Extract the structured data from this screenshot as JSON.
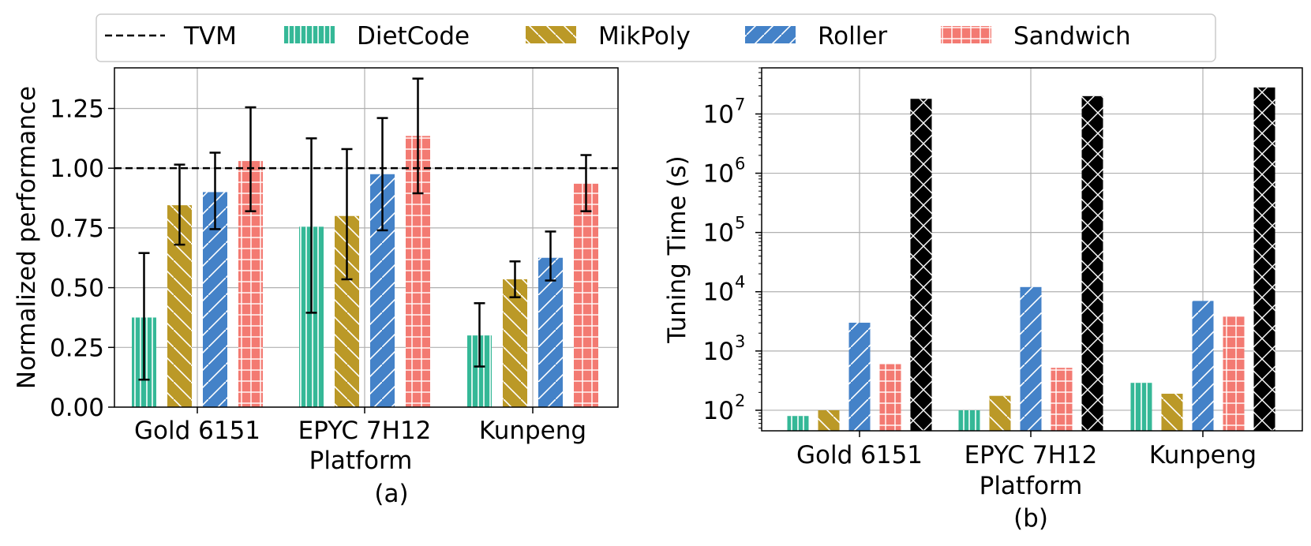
{
  "legend": {
    "items": [
      {
        "label": "TVM",
        "kind": "dash",
        "color": "#000000",
        "pattern": "none"
      },
      {
        "label": "DietCode",
        "kind": "bar",
        "color": "#35b897",
        "pattern": "vlines"
      },
      {
        "label": "MikPoly",
        "kind": "bar",
        "color": "#bb9927",
        "pattern": "bslash"
      },
      {
        "label": "Roller",
        "kind": "bar",
        "color": "#4482c8",
        "pattern": "fslash"
      },
      {
        "label": "Sandwich",
        "kind": "bar",
        "color": "#f37a72",
        "pattern": "grid"
      }
    ]
  },
  "chart_data": [
    {
      "id": "a",
      "type": "bar",
      "caption": "(a)",
      "xlabel": "Platform",
      "ylabel": "Normalized performance",
      "categories": [
        "Gold 6151",
        "EPYC 7H12",
        "Kunpeng"
      ],
      "ylim": [
        0,
        1.42
      ],
      "yticks": [
        0,
        0.25,
        0.5,
        0.75,
        1.0,
        1.25
      ],
      "ytick_labels": [
        "0.00",
        "0.25",
        "0.50",
        "0.75",
        "1.00",
        "1.25"
      ],
      "grid": true,
      "reference_line": {
        "name": "TVM",
        "value": 1.0,
        "style": "dashed"
      },
      "series": [
        {
          "name": "DietCode",
          "color": "#35b897",
          "pattern": "vlines",
          "values": [
            0.375,
            0.755,
            0.3
          ],
          "err_low": [
            0.115,
            0.395,
            0.17
          ],
          "err_high": [
            0.645,
            1.125,
            0.435
          ]
        },
        {
          "name": "MikPoly",
          "color": "#bb9927",
          "pattern": "bslash",
          "values": [
            0.845,
            0.8,
            0.535
          ],
          "err_low": [
            0.68,
            0.535,
            0.46
          ],
          "err_high": [
            1.015,
            1.08,
            0.61
          ]
        },
        {
          "name": "Roller",
          "color": "#4482c8",
          "pattern": "fslash",
          "values": [
            0.9,
            0.975,
            0.625
          ],
          "err_low": [
            0.745,
            0.74,
            0.53
          ],
          "err_high": [
            1.065,
            1.21,
            0.735
          ]
        },
        {
          "name": "Sandwich",
          "color": "#f37a72",
          "pattern": "grid",
          "values": [
            1.03,
            1.135,
            0.935
          ],
          "err_low": [
            0.82,
            0.895,
            0.82
          ],
          "err_high": [
            1.255,
            1.375,
            1.055
          ]
        }
      ]
    },
    {
      "id": "b",
      "type": "bar",
      "caption": "(b)",
      "xlabel": "",
      "ylabel": "Tuning Time (s)",
      "yscale": "log",
      "categories": [
        "Gold 6151",
        "EPYC 7H12",
        "Kunpeng"
      ],
      "ylim": [
        45,
        60000000
      ],
      "yticks": [
        100,
        1000,
        10000,
        100000,
        1000000,
        10000000
      ],
      "ytick_bases": [
        "10",
        "10",
        "10",
        "10",
        "10",
        "10"
      ],
      "ytick_exps": [
        "2",
        "3",
        "4",
        "5",
        "6",
        "7"
      ],
      "grid": true,
      "series": [
        {
          "name": "DietCode",
          "color": "#35b897",
          "pattern": "vlines",
          "values": [
            80,
            100,
            290
          ]
        },
        {
          "name": "MikPoly",
          "color": "#bb9927",
          "pattern": "bslash",
          "values": [
            100,
            175,
            190
          ]
        },
        {
          "name": "Roller",
          "color": "#4482c8",
          "pattern": "fslash",
          "values": [
            3000,
            12000,
            7000
          ]
        },
        {
          "name": "Sandwich",
          "color": "#f37a72",
          "pattern": "grid",
          "values": [
            600,
            520,
            3800
          ]
        },
        {
          "name": "TVM",
          "color": "#000000",
          "pattern": "cross",
          "values": [
            18000000,
            20000000,
            28000000
          ]
        }
      ]
    }
  ]
}
